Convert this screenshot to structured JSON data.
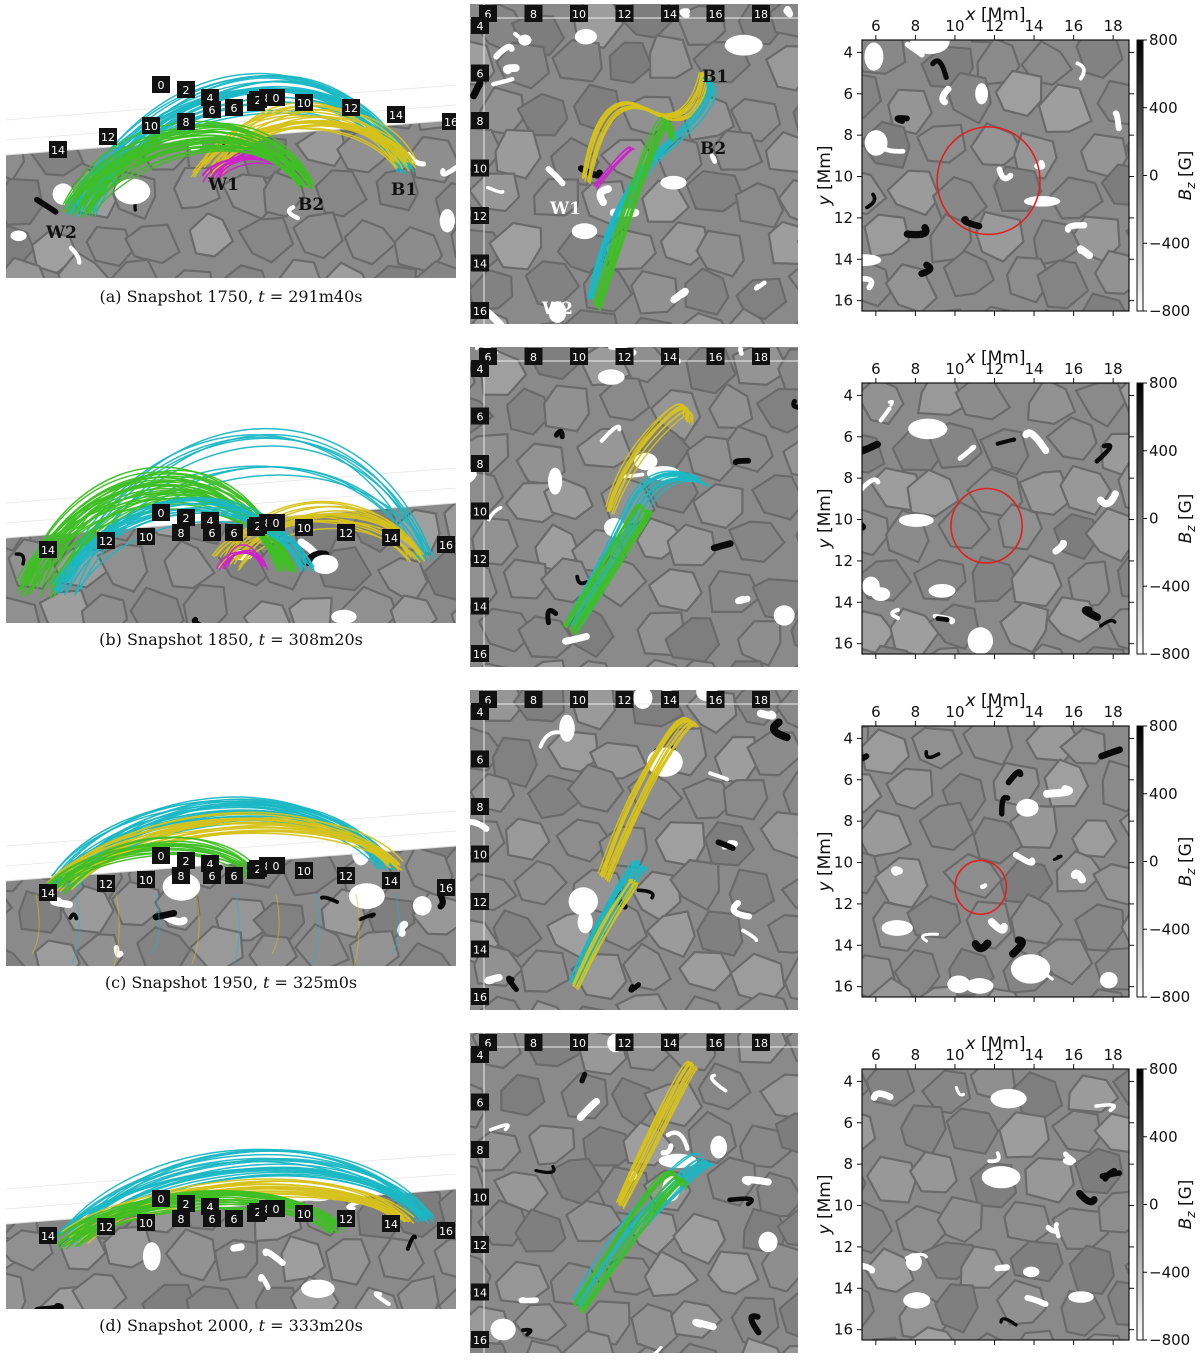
{
  "figure": {
    "rows": [
      {
        "caption_prefix": "(a) Snapshot 1750,",
        "caption_t_var": "t",
        "caption_t_value": "= 291m40s",
        "circle": {
          "x_mm": 11.7,
          "y_mm": 10.2,
          "r_mm": 2.6
        },
        "footpoint_labels": {
          "persp": [
            "W1",
            "B2",
            "B1",
            "W2"
          ],
          "top": [
            "B1",
            "B2",
            "W1",
            "W2"
          ]
        }
      },
      {
        "caption_prefix": "(b) Snapshot 1850,",
        "caption_t_var": "t",
        "caption_t_value": "= 308m20s",
        "circle": {
          "x_mm": 11.6,
          "y_mm": 10.3,
          "r_mm": 1.8
        }
      },
      {
        "caption_prefix": "(c) Snapshot 1950,",
        "caption_t_var": "t",
        "caption_t_value": "= 325m0s",
        "circle": {
          "x_mm": 11.3,
          "y_mm": 11.2,
          "r_mm": 1.3
        }
      },
      {
        "caption_prefix": "(d) Snapshot 2000,",
        "caption_t_var": "t",
        "caption_t_value": "= 333m20s",
        "circle": null
      }
    ],
    "top_view": {
      "x_ticks": [
        "6",
        "8",
        "10",
        "12",
        "14",
        "16",
        "18"
      ],
      "y_ticks": [
        "4",
        "6",
        "8",
        "10",
        "12",
        "14",
        "16"
      ]
    },
    "persp_ticks": [
      "0",
      "2",
      "4",
      "6",
      "6",
      "4",
      "2",
      "8",
      "0",
      "10",
      "12",
      "14",
      "16",
      "14",
      "12",
      "10",
      "8"
    ],
    "bz_map": {
      "xlabel_var": "x",
      "xlabel_unit": "[Mm]",
      "ylabel_var": "y",
      "ylabel_unit": "[Mm]",
      "x_ticks": [
        "6",
        "8",
        "10",
        "12",
        "14",
        "16",
        "18"
      ],
      "y_ticks": [
        "4",
        "6",
        "8",
        "10",
        "12",
        "14",
        "16"
      ],
      "colorbar_label": "[G]",
      "colorbar_var": "B",
      "colorbar_sub": "z",
      "colorbar_ticks": [
        "800",
        "400",
        "0",
        "−400",
        "−800"
      ],
      "xlim": [
        5.3,
        18.8
      ],
      "ylim": [
        16.5,
        3.4
      ]
    },
    "colors": {
      "cyan_lines": "#1ab7c4",
      "green_lines": "#3fbf25",
      "yellow_lines": "#d6c21a",
      "magenta_lines": "#cc22cc",
      "circle": "#e02020",
      "surface_gray": "#8d8d8d"
    }
  }
}
